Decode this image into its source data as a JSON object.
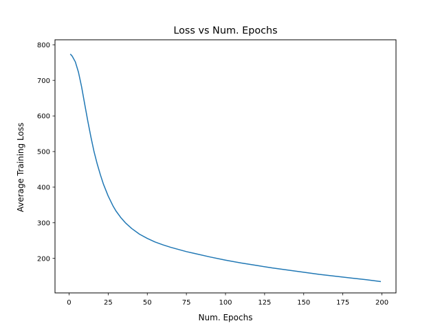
{
  "chart_data": {
    "type": "line",
    "title": "Loss vs Num. Epochs",
    "xlabel": "Num. Epochs",
    "ylabel": "Average Training Loss",
    "xlim": [
      -9,
      209
    ],
    "ylim": [
      103,
      814
    ],
    "xticks": [
      0,
      25,
      50,
      75,
      100,
      125,
      150,
      175,
      200
    ],
    "xtick_labels": [
      "0",
      "25",
      "50",
      "75",
      "100",
      "125",
      "150",
      "175",
      "200"
    ],
    "yticks": [
      200,
      300,
      400,
      500,
      600,
      700,
      800
    ],
    "ytick_labels": [
      "200",
      "300",
      "400",
      "500",
      "600",
      "700",
      "800"
    ],
    "grid": false,
    "legend": "none",
    "series": [
      {
        "color": "#1f77b4",
        "x": [
          1,
          2,
          4,
          6,
          8,
          10,
          12,
          14,
          16,
          18,
          20,
          22,
          25,
          28,
          30,
          33,
          36,
          40,
          45,
          50,
          55,
          60,
          65,
          70,
          75,
          80,
          90,
          100,
          110,
          120,
          130,
          140,
          150,
          160,
          170,
          180,
          190,
          199
        ],
        "y": [
          773,
          768,
          752,
          723,
          682,
          633,
          585,
          540,
          499,
          465,
          435,
          408,
          375,
          348,
          333,
          315,
          300,
          284,
          268,
          256,
          246,
          238,
          231,
          225,
          219,
          214,
          204,
          195,
          187,
          180,
          173,
          167,
          161,
          155,
          150,
          145,
          140,
          135
        ]
      }
    ]
  }
}
